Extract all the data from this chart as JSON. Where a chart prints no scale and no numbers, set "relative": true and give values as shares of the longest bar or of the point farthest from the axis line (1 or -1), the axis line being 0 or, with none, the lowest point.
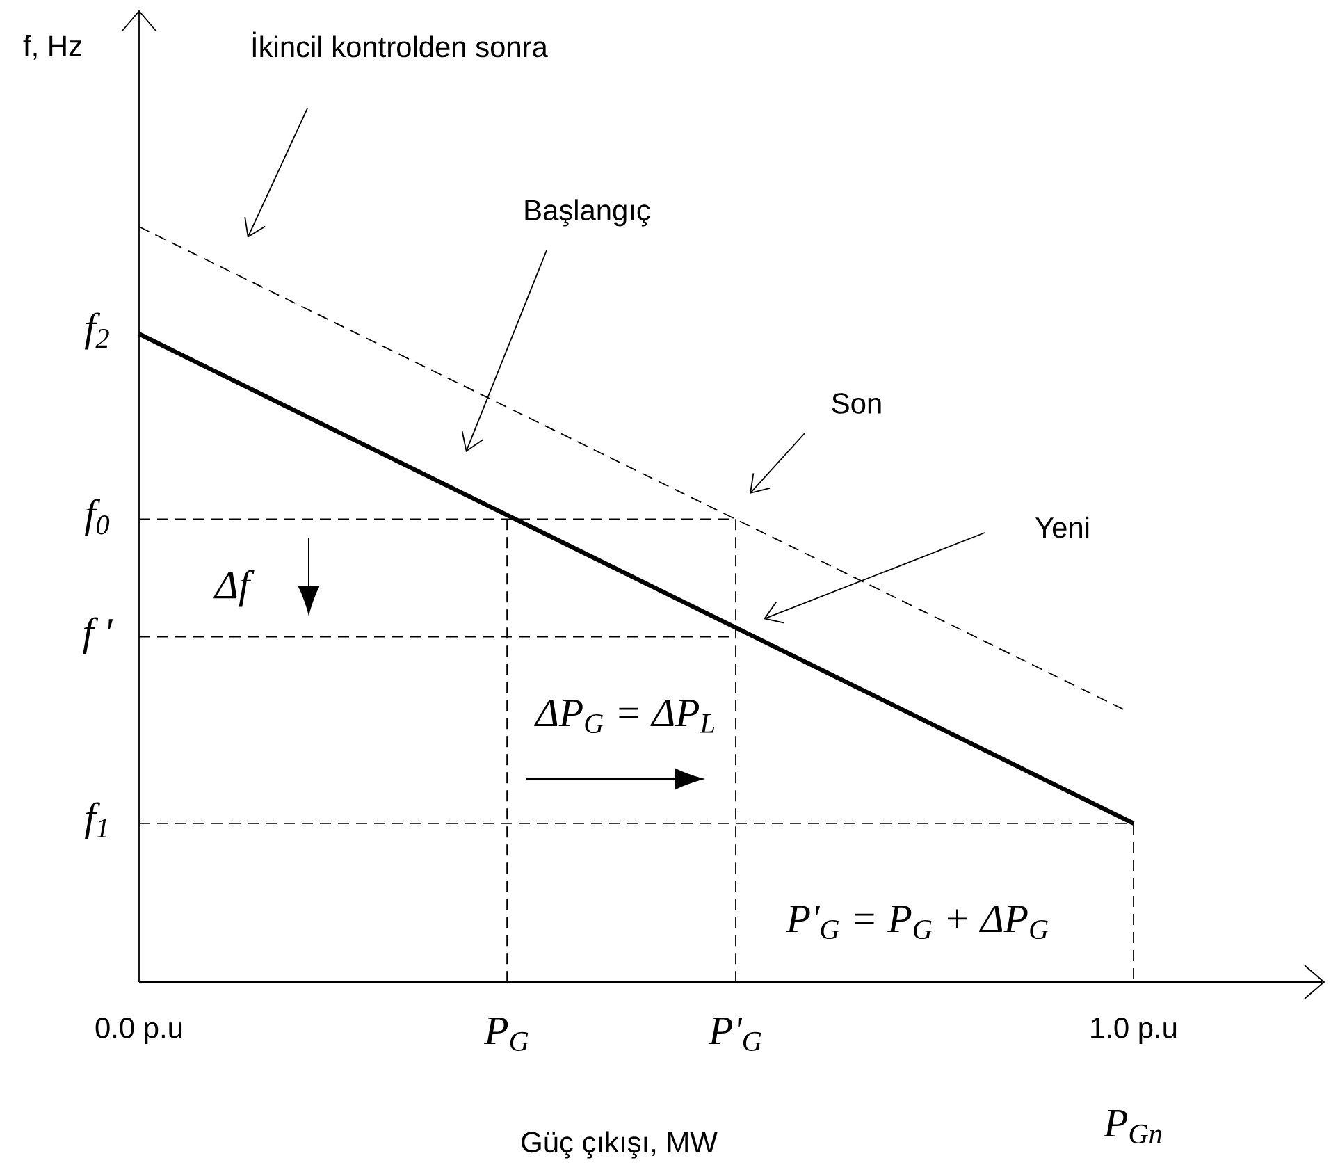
{
  "chart_data": {
    "type": "line",
    "relative": true,
    "xlabel": "Güç çıkışı, MW",
    "xlim": [
      0,
      1.19
    ],
    "xticks": [
      {
        "value": 0,
        "label": "0.0 p.u"
      },
      {
        "value": 0.37,
        "label": "P$_{G}$"
      },
      {
        "value": 0.6,
        "label": "P'$_{G}$"
      },
      {
        "value": 1,
        "label": "1.0 p.u"
      }
    ],
    "marker": "none",
    "series": [
      {
        "color": "#000000",
        "line_style": "solid",
        "x": [
          0,
          1
        ],
        "values": [
          0.858,
          0.21
        ]
      },
      {
        "color": "#000000",
        "line_style": "dashed",
        "x": [
          0,
          0.993
        ],
        "values": [
          1,
          0.359
        ]
      },
      {
        "color": "#000000",
        "line_style": "dashed",
        "x": [
          0,
          0.6,
          0.6
        ],
        "values": [
          0.613,
          0.613,
          0
        ]
      },
      {
        "color": "#000000",
        "line_style": "dashed",
        "x": [
          0.37,
          0.37
        ],
        "values": [
          0.613,
          0
        ]
      },
      {
        "color": "#000000",
        "line_style": "dashed",
        "x": [
          0,
          0.6
        ],
        "values": [
          0.457,
          0.457
        ]
      },
      {
        "color": "#000000",
        "line_style": "dashed",
        "x": [
          0,
          1,
          1
        ],
        "values": [
          0.21,
          0.21,
          0
        ]
      }
    ],
    "annotations": [
      "f, Hz",
      "İkincil kontrolden sonra",
      "Başlangıç",
      "Son",
      "Yeni",
      "Δf",
      "ΔP$_{G}$ = ΔP$_{L}$",
      "P'$_{G}$ = P$_{G}$ + ΔP$_{G}$",
      "f$_{2}$",
      "f$_{0}$",
      "f '",
      "f$_{1}$",
      "P$_{Gn}$"
    ]
  }
}
